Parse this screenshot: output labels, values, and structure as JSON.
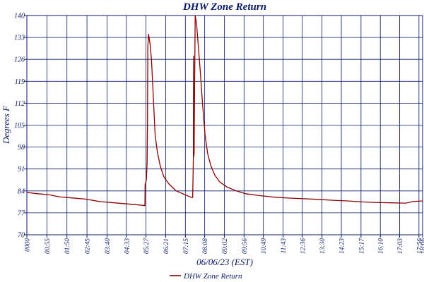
{
  "chart_data": {
    "type": "line",
    "title": "DHW Zone Return",
    "xlabel": "06/06/23 (EST)",
    "ylabel": "Degrees F",
    "ylim": [
      70,
      140
    ],
    "yticks": [
      70,
      77,
      84,
      91,
      98,
      105,
      112,
      119,
      126,
      133,
      140
    ],
    "xlim": [
      0,
      1086
    ],
    "xticks": [
      {
        "t": 0,
        "label": "0000"
      },
      {
        "t": 55,
        "label": "00:55"
      },
      {
        "t": 110,
        "label": "01:50"
      },
      {
        "t": 165,
        "label": "02:45"
      },
      {
        "t": 220,
        "label": "03:40"
      },
      {
        "t": 273,
        "label": "04:33"
      },
      {
        "t": 327,
        "label": "05:27"
      },
      {
        "t": 381,
        "label": "06:21"
      },
      {
        "t": 435,
        "label": "07:15"
      },
      {
        "t": 488,
        "label": "08:08"
      },
      {
        "t": 542,
        "label": "09:02"
      },
      {
        "t": 596,
        "label": "09:56"
      },
      {
        "t": 649,
        "label": "10:49"
      },
      {
        "t": 703,
        "label": "11:43"
      },
      {
        "t": 756,
        "label": "12:36"
      },
      {
        "t": 810,
        "label": "13:30"
      },
      {
        "t": 863,
        "label": "14:23"
      },
      {
        "t": 917,
        "label": "15:17"
      },
      {
        "t": 970,
        "label": "16:10"
      },
      {
        "t": 1023,
        "label": "17:03"
      },
      {
        "t": 1076,
        "label": "17:56"
      },
      {
        "t": 1086,
        "label": "18:06"
      }
    ],
    "grid": true,
    "legend_position": "bottom",
    "series": [
      {
        "name": "DHW Zone Return",
        "color": "#8b0000",
        "points": [
          [
            0,
            83.5
          ],
          [
            30,
            83.1
          ],
          [
            60,
            82.8
          ],
          [
            90,
            82.1
          ],
          [
            120,
            81.8
          ],
          [
            160,
            81.4
          ],
          [
            200,
            80.6
          ],
          [
            240,
            80.2
          ],
          [
            280,
            79.8
          ],
          [
            310,
            79.5
          ],
          [
            324,
            79.3
          ],
          [
            324.5,
            86.0
          ],
          [
            328,
            87.5
          ],
          [
            330,
            93.0
          ],
          [
            331,
            105.0
          ],
          [
            332,
            130.0
          ],
          [
            334,
            134.0
          ],
          [
            338,
            131.0
          ],
          [
            342,
            126.0
          ],
          [
            347,
            114.0
          ],
          [
            352,
            102.0
          ],
          [
            358,
            96.5
          ],
          [
            366,
            92.0
          ],
          [
            376,
            88.5
          ],
          [
            390,
            86.2
          ],
          [
            410,
            84.0
          ],
          [
            430,
            83.0
          ],
          [
            450,
            82.0
          ],
          [
            455,
            81.9
          ],
          [
            456,
            88.0
          ],
          [
            457,
            95.0
          ],
          [
            457.5,
            127.0
          ],
          [
            458,
            95.0
          ],
          [
            459,
            96.0
          ],
          [
            460,
            112.0
          ],
          [
            462,
            140.0
          ],
          [
            466,
            137.0
          ],
          [
            470,
            131.0
          ],
          [
            476,
            122.0
          ],
          [
            482,
            112.0
          ],
          [
            489,
            102.0
          ],
          [
            496,
            96.0
          ],
          [
            505,
            92.0
          ],
          [
            516,
            89.0
          ],
          [
            530,
            86.8
          ],
          [
            550,
            85.2
          ],
          [
            575,
            84.0
          ],
          [
            600,
            83.1
          ],
          [
            640,
            82.5
          ],
          [
            680,
            82.0
          ],
          [
            720,
            81.7
          ],
          [
            760,
            81.5
          ],
          [
            800,
            81.3
          ],
          [
            840,
            81.0
          ],
          [
            880,
            80.8
          ],
          [
            920,
            80.5
          ],
          [
            960,
            80.3
          ],
          [
            1000,
            80.2
          ],
          [
            1040,
            80.1
          ],
          [
            1060,
            80.6
          ],
          [
            1086,
            80.8
          ]
        ]
      }
    ]
  }
}
